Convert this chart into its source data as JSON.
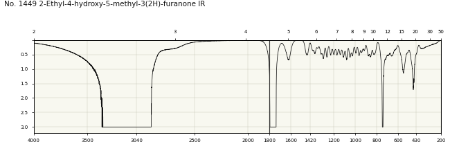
{
  "title": "No. 1449 2-Ethyl-4-hydroxy-5-methyl-3(2H)-furanone IR",
  "title_fontsize": 7.5,
  "bg_color": "#ffffff",
  "plot_bg_color": "#f8f8f0",
  "line_color": "#111111",
  "grid_color": "#ccccbb",
  "x_bottom_ticks": [
    4000,
    3500,
    3040,
    2500,
    2000,
    1800,
    1600,
    1420,
    1200,
    1000,
    800,
    600,
    430,
    200
  ],
  "x_bottom_labels": [
    "4000",
    "3500",
    "3040",
    "2500",
    "2000",
    "1800",
    "1600",
    "1420",
    "1200",
    "1000",
    "800",
    "600",
    "430",
    "200"
  ],
  "x_top_ticks_wn": [
    5000,
    3333,
    2500,
    2000,
    1667,
    1429,
    1250,
    1111,
    1000,
    833,
    667,
    500,
    333,
    200
  ],
  "x_top_labels": [
    "2",
    "3",
    "4",
    "5",
    "6",
    "7",
    "8",
    "9",
    "10",
    "12",
    "15",
    "20",
    "30",
    "50"
  ],
  "y_ticks": [
    0.0,
    0.5,
    1.0,
    1.5,
    2.0,
    2.5,
    3.0
  ],
  "y_labels": [
    "",
    "0.5",
    "1.0",
    "1.5",
    "2.0",
    "2.5",
    "3.0"
  ],
  "xmin": 200,
  "xmax": 4000,
  "ymin": 0.0,
  "ymax": 3.2
}
